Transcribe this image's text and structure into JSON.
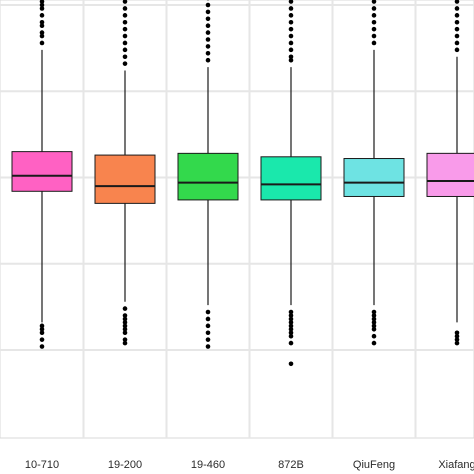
{
  "chart_data": {
    "type": "box",
    "title": "",
    "xlabel": "",
    "ylabel": "",
    "ylim": [
      0,
      100
    ],
    "grid": true,
    "categories": [
      "10-710",
      "19-200",
      "19-460",
      "872B",
      "QiuFeng",
      "Xiafang"
    ],
    "boxes": [
      {
        "category": "10-710",
        "color": "#FF61C3",
        "q1": 46,
        "median": 50.5,
        "q3": 57.5,
        "whisker_low": 8,
        "whisker_high": 87,
        "outliers_low": [
          1,
          3,
          5,
          6,
          7
        ],
        "outliers_high": [
          89,
          91,
          92,
          94,
          95,
          97,
          99,
          100,
          101,
          102,
          103,
          104,
          105,
          106,
          108,
          110,
          113,
          117,
          118,
          120,
          122,
          124
        ]
      },
      {
        "category": "19-200",
        "color": "#F8844E",
        "q1": 42.5,
        "median": 47.5,
        "q3": 56.5,
        "whisker_low": 14,
        "whisker_high": 81,
        "outliers_low": [
          2,
          3,
          5,
          6,
          7,
          8,
          9,
          10,
          12
        ],
        "outliers_high": [
          83,
          85,
          87,
          89,
          91,
          93,
          95,
          97,
          99,
          101,
          103,
          105,
          107,
          109,
          111,
          113,
          115,
          117,
          119,
          121,
          123
        ]
      },
      {
        "category": "19-460",
        "color": "#33D94C",
        "q1": 43.5,
        "median": 48.5,
        "q3": 57,
        "whisker_low": 13,
        "whisker_high": 82,
        "outliers_low": [
          1,
          3,
          5,
          7,
          9,
          11
        ],
        "outliers_high": [
          84,
          86,
          88,
          90,
          92,
          94,
          96,
          98,
          100,
          102,
          104,
          106,
          108,
          110,
          112,
          116,
          120
        ]
      },
      {
        "category": "872B",
        "color": "#1AE8AC",
        "q1": 43.5,
        "median": 48,
        "q3": 56,
        "whisker_low": 13,
        "whisker_high": 82,
        "outliers_low": [
          -4,
          2,
          4,
          5,
          6,
          7,
          8,
          9,
          10,
          11
        ],
        "outliers_high": [
          84,
          85,
          87,
          89,
          91,
          93,
          95,
          97,
          99,
          101,
          103,
          105,
          107,
          109,
          111,
          113,
          115,
          117,
          119,
          121,
          123,
          125
        ]
      },
      {
        "category": "QiuFeng",
        "color": "#6EE3E3",
        "q1": 44.5,
        "median": 48.5,
        "q3": 55.5,
        "whisker_low": 13,
        "whisker_high": 87,
        "outliers_low": [
          2,
          4,
          6,
          7,
          8,
          9,
          10,
          11
        ],
        "outliers_high": [
          89,
          91,
          93,
          95,
          97,
          99,
          101,
          103,
          105,
          107,
          111,
          115
        ]
      },
      {
        "category": "Xiafang",
        "color": "#F99BEA",
        "q1": 44.5,
        "median": 49,
        "q3": 57,
        "whisker_low": 8,
        "whisker_high": 85,
        "outliers_low": [
          2,
          3,
          4,
          5
        ],
        "outliers_high": [
          87,
          89,
          91,
          93,
          95,
          97,
          99,
          101,
          103
        ]
      }
    ]
  }
}
